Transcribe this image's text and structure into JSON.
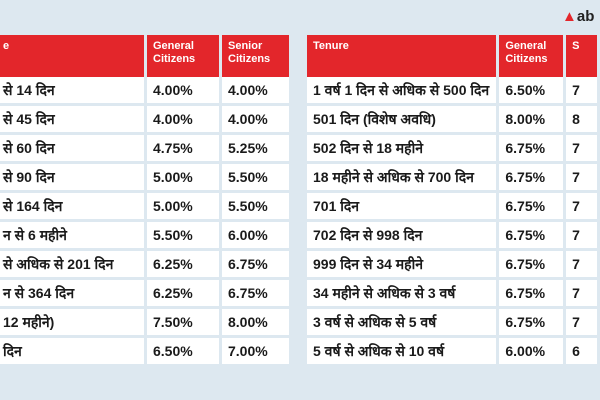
{
  "logo": "ab",
  "tables": [
    {
      "headers": [
        "e",
        "General Citizens",
        "Senior Citizens"
      ],
      "rows": [
        [
          "से 14 दिन",
          "4.00%",
          "4.00%"
        ],
        [
          "से 45 दिन",
          "4.00%",
          "4.00%"
        ],
        [
          "से 60 दिन",
          "4.75%",
          "5.25%"
        ],
        [
          "से 90 दिन",
          "5.00%",
          "5.50%"
        ],
        [
          "से 164 दिन",
          "5.00%",
          "5.50%"
        ],
        [
          "न से 6 महीने",
          "5.50%",
          "6.00%"
        ],
        [
          "से अधिक से 201 दिन",
          "6.25%",
          "6.75%"
        ],
        [
          "न से 364 दिन",
          "6.25%",
          "6.75%"
        ],
        [
          "12 महीने)",
          "7.50%",
          "8.00%"
        ],
        [
          "दिन",
          "6.50%",
          "7.00%"
        ]
      ]
    },
    {
      "headers": [
        "Tenure",
        "General Citizens",
        "S"
      ],
      "rows": [
        [
          "1 वर्ष 1 दिन से अधिक से 500 दिन",
          "6.50%",
          "7"
        ],
        [
          "501 दिन (विशेष अवधि)",
          "8.00%",
          "8"
        ],
        [
          "502 दिन से 18 महीने",
          "6.75%",
          "7"
        ],
        [
          "18 महीने से अधिक से 700 दिन",
          "6.75%",
          "7"
        ],
        [
          "701 दिन",
          "6.75%",
          "7"
        ],
        [
          "702 दिन से 998 दिन",
          "6.75%",
          "7"
        ],
        [
          "999 दिन से 34 महीने",
          "6.75%",
          "7"
        ],
        [
          "34 महीने से अधिक से 3 वर्ष",
          "6.75%",
          "7"
        ],
        [
          "3 वर्ष से अधिक से 5 वर्ष",
          "6.75%",
          "7"
        ],
        [
          "5 वर्ष से अधिक से 10 वर्ष",
          "6.00%",
          "6"
        ]
      ]
    }
  ]
}
